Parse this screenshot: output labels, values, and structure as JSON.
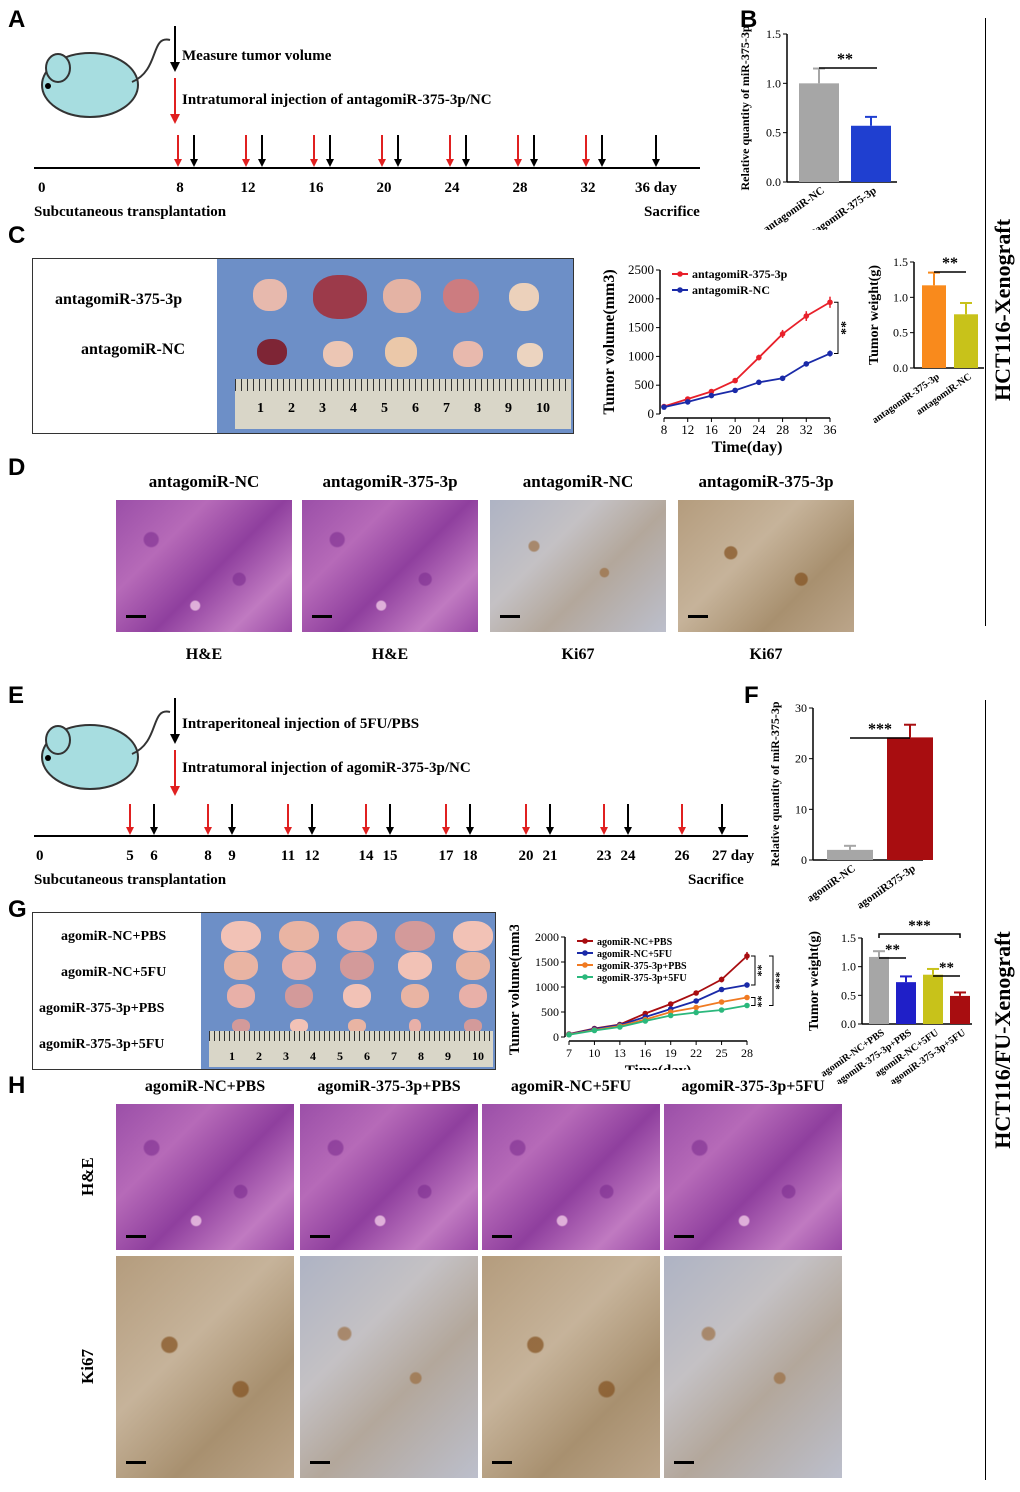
{
  "panels": {
    "A": "A",
    "B": "B",
    "C": "C",
    "D": "D",
    "E": "E",
    "F": "F",
    "G": "G",
    "H": "H"
  },
  "side_labels": {
    "top": "HCT116-Xenograft",
    "bottom": "HCT116/FU-Xenograft"
  },
  "panelA": {
    "legend_black": "Measure tumor volume",
    "legend_red": "Intratumoral injection of antagomiR-375-3p/NC",
    "days": [
      "0",
      "8",
      "12",
      "16",
      "20",
      "24",
      "28",
      "32",
      "36 day"
    ],
    "start_label": "Subcutaneous transplantation",
    "end_label": "Sacrifice"
  },
  "panelE": {
    "legend_black": "Intraperitoneal injection of 5FU/PBS",
    "legend_red": "Intratumoral injection of agomiR-375-3p/NC",
    "days": [
      "0",
      "5",
      "6",
      "8",
      "9",
      "11",
      "12",
      "14",
      "15",
      "17",
      "18",
      "20",
      "21",
      "23",
      "24",
      "26",
      "27 day"
    ],
    "start_label": "Subcutaneous transplantation",
    "end_label": "Sacrifice"
  },
  "panelC": {
    "row_labels": [
      "antagomiR-375-3p",
      "antagomiR-NC"
    ],
    "ruler_numbers": [
      "1",
      "2",
      "3",
      "4",
      "5",
      "6",
      "7",
      "8",
      "9",
      "10"
    ]
  },
  "panelG": {
    "row_labels": [
      "agomiR-NC+PBS",
      "agomiR-NC+5FU",
      "agomiR-375-3p+PBS",
      "agomiR-375-3p+5FU"
    ],
    "ruler_numbers": [
      "1",
      "2",
      "3",
      "4",
      "5",
      "6",
      "7",
      "8",
      "9",
      "10"
    ]
  },
  "panelD": {
    "titles": [
      "antagomiR-NC",
      "antagomiR-375-3p",
      "antagomiR-NC",
      "antagomiR-375-3p"
    ],
    "stains": [
      "H&E",
      "H&E",
      "Ki67",
      "Ki67"
    ]
  },
  "panelH": {
    "titles": [
      "agomiR-NC+PBS",
      "agomiR-375-3p+PBS",
      "agomiR-NC+5FU",
      "agomiR-375-3p+5FU"
    ],
    "rows": [
      "H&E",
      "Ki67"
    ]
  },
  "chart_data": [
    {
      "id": "B",
      "type": "bar",
      "ylabel": "Relative quantity of miR-375-3p",
      "categories": [
        "antagomiR-NC",
        "antagomiR-375-3p"
      ],
      "values": [
        1.0,
        0.57
      ],
      "errors": [
        0.15,
        0.09
      ],
      "colors": [
        "#a6a6a6",
        "#1f3fd0"
      ],
      "ylim": [
        0,
        1.5
      ],
      "yticks": [
        "0.0",
        "0.5",
        "1.0",
        "1.5"
      ],
      "sig": "**"
    },
    {
      "id": "C-line",
      "type": "line",
      "xlabel": "Time(day)",
      "ylabel": "Tumor volume(mm3)",
      "x": [
        8,
        12,
        16,
        20,
        24,
        28,
        32,
        36
      ],
      "xlim": [
        8,
        36
      ],
      "ylim": [
        0,
        2500
      ],
      "yticks": [
        "0",
        "500",
        "1000",
        "1500",
        "2000",
        "2500"
      ],
      "xticks": [
        "8",
        "12",
        "16",
        "20",
        "24",
        "28",
        "32",
        "36"
      ],
      "series": [
        {
          "name": "antagomiR-375-3p",
          "color": "#e8202a",
          "values": [
            130,
            260,
            390,
            580,
            980,
            1390,
            1700,
            1940
          ]
        },
        {
          "name": "antagomiR-NC",
          "color": "#1a2aa8",
          "values": [
            120,
            210,
            320,
            410,
            550,
            620,
            870,
            1050
          ]
        }
      ],
      "sig": [
        "**"
      ]
    },
    {
      "id": "C-bar",
      "type": "bar",
      "ylabel": "Tumor weight(g)",
      "categories": [
        "antagomiR-375-3p",
        "antagomiR-NC"
      ],
      "values": [
        1.17,
        0.76
      ],
      "errors": [
        0.18,
        0.16
      ],
      "colors": [
        "#f98a1c",
        "#c8c21a"
      ],
      "ylim": [
        0,
        1.5
      ],
      "yticks": [
        "0.0",
        "0.5",
        "1.0",
        "1.5"
      ],
      "sig": "**"
    },
    {
      "id": "F",
      "type": "bar",
      "ylabel": "Relative quantity of miR-375-3p",
      "categories": [
        "agomiR-NC",
        "agomiR375-3p"
      ],
      "values": [
        2.0,
        24.2
      ],
      "errors": [
        0.8,
        2.5
      ],
      "colors": [
        "#a6a6a6",
        "#a80d10"
      ],
      "ylim": [
        0,
        30
      ],
      "yticks": [
        "0",
        "10",
        "20",
        "30"
      ],
      "sig": "***"
    },
    {
      "id": "G-line",
      "type": "line",
      "xlabel": "Time(day)",
      "ylabel": "Tumor volume(mm3)",
      "x": [
        7,
        10,
        13,
        16,
        19,
        22,
        25,
        28
      ],
      "xlim": [
        7,
        28
      ],
      "ylim": [
        0,
        2000
      ],
      "yticks": [
        "0",
        "500",
        "1000",
        "1500",
        "2000"
      ],
      "xticks": [
        "7",
        "10",
        "13",
        "16",
        "19",
        "22",
        "25",
        "28"
      ],
      "series": [
        {
          "name": "agomiR-NC+PBS",
          "color": "#a80d10",
          "values": [
            60,
            170,
            250,
            470,
            660,
            880,
            1150,
            1620
          ]
        },
        {
          "name": "agomiR-NC+5FU",
          "color": "#1a2aa8",
          "values": [
            55,
            160,
            240,
            400,
            560,
            720,
            950,
            1040
          ]
        },
        {
          "name": "agomiR-375-3p+PBS",
          "color": "#f07a22",
          "values": [
            50,
            140,
            220,
            350,
            500,
            590,
            700,
            790
          ]
        },
        {
          "name": "agomiR-375-3p+5FU",
          "color": "#2bb87c",
          "values": [
            45,
            130,
            200,
            320,
            430,
            490,
            540,
            630
          ]
        }
      ],
      "sig": [
        "**",
        "**",
        "***"
      ]
    },
    {
      "id": "G-bar",
      "type": "bar",
      "ylabel": "Tumor weight(g)",
      "categories": [
        "agomiR-NC+PBS",
        "agomiR-375-3p+PBS",
        "agomiR-NC+5FU",
        "agomiR-375-3p+5FU"
      ],
      "values": [
        1.17,
        0.73,
        0.86,
        0.49
      ],
      "errors": [
        0.1,
        0.1,
        0.1,
        0.06
      ],
      "colors": [
        "#a6a6a6",
        "#1f1fc8",
        "#c8c21a",
        "#a80d10"
      ],
      "ylim": [
        0,
        1.5
      ],
      "yticks": [
        "0.0",
        "0.5",
        "1.0",
        "1.5"
      ],
      "sig": [
        "**",
        "**",
        "***"
      ]
    }
  ]
}
